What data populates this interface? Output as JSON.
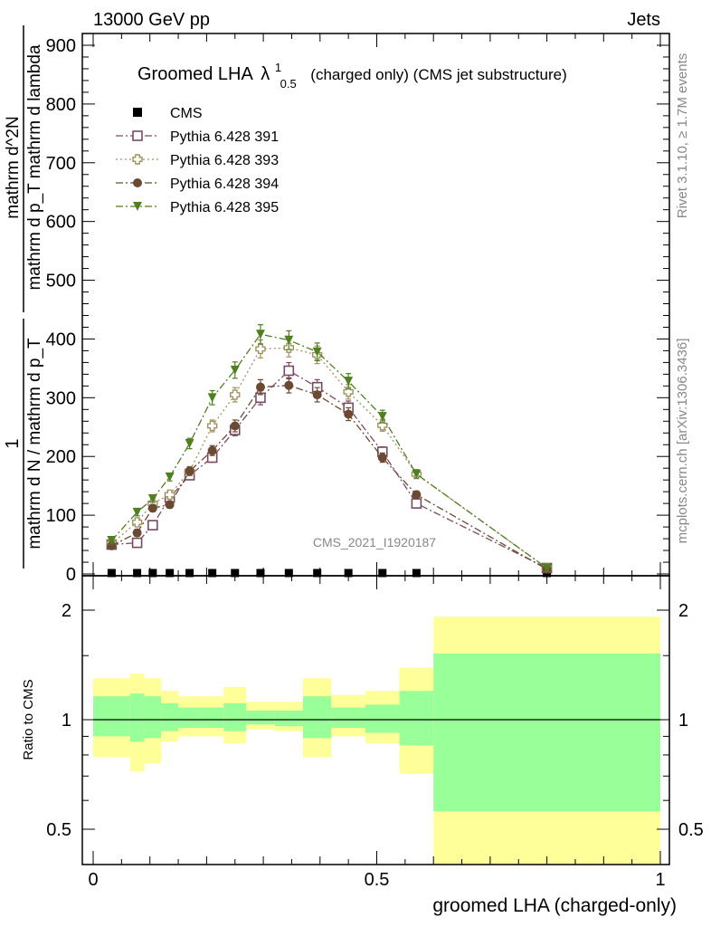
{
  "header": {
    "left": "13000 GeV pp",
    "right": "Jets"
  },
  "side_labels": {
    "rivet": "Rivet 3.1.10, ≥ 1.7M events",
    "mcplots": "mcplots.cern.ch [arXiv:1306.3436]"
  },
  "watermark": "CMS_2021_I1920187",
  "chart_data": [
    {
      "type": "line",
      "title": {
        "main": "Groomed LHA",
        "lambda": "λ",
        "sup": "1",
        "sub": "0.5",
        "suffix": "(charged only) (CMS jet substructure)"
      },
      "ylabel": {
        "frac_num": "1",
        "frac_den": "mathrm d N / mathrm d p_T",
        "rhs_num": "mathrm d^2N",
        "rhs_den": "mathrm d p_T mathrm d lambda"
      },
      "xlim": [
        0,
        1
      ],
      "ylim": [
        0,
        920
      ],
      "yticks": [
        0,
        100,
        200,
        300,
        400,
        500,
        600,
        700,
        800,
        900
      ],
      "legend_position": "top-left",
      "series": [
        {
          "name": "CMS",
          "color": "#000000",
          "marker": "square-filled",
          "x": [
            0.0325,
            0.0775,
            0.105,
            0.135,
            0.17,
            0.21,
            0.25,
            0.295,
            0.345,
            0.395,
            0.45,
            0.51,
            0.57,
            0.8
          ],
          "y": [
            0,
            0,
            0,
            0,
            0,
            0,
            0,
            0,
            0,
            0,
            0,
            0,
            0,
            0
          ]
        },
        {
          "name": "Pythia 6.428 391",
          "color": "#7a4a62",
          "marker": "square-open",
          "dash": "8,3,2,3",
          "x": [
            0.0325,
            0.0775,
            0.105,
            0.135,
            0.17,
            0.21,
            0.25,
            0.295,
            0.345,
            0.395,
            0.45,
            0.51,
            0.57,
            0.8
          ],
          "y": [
            50,
            53,
            83,
            130,
            168,
            198,
            245,
            300,
            346,
            318,
            283,
            208,
            120,
            10
          ]
        },
        {
          "name": "Pythia 6.428 393",
          "color": "#9f9460",
          "marker": "cross-open",
          "dash": "2,3",
          "x": [
            0.0325,
            0.0775,
            0.105,
            0.135,
            0.17,
            0.21,
            0.25,
            0.295,
            0.345,
            0.395,
            0.45,
            0.51,
            0.57,
            0.8
          ],
          "y": [
            52,
            88,
            120,
            135,
            175,
            252,
            305,
            383,
            385,
            373,
            310,
            253,
            170,
            10
          ]
        },
        {
          "name": "Pythia 6.428 394",
          "color": "#6b4a33",
          "marker": "circle-filled",
          "dash": "8,3,2,3",
          "x": [
            0.0325,
            0.0775,
            0.105,
            0.135,
            0.17,
            0.21,
            0.25,
            0.295,
            0.345,
            0.395,
            0.45,
            0.51,
            0.57,
            0.8
          ],
          "y": [
            48,
            70,
            112,
            118,
            175,
            210,
            252,
            318,
            321,
            305,
            272,
            198,
            135,
            8
          ]
        },
        {
          "name": "Pythia 6.428 395",
          "color": "#4f7f1f",
          "marker": "triangle-down-filled",
          "dash": "8,3,2,3",
          "x": [
            0.0325,
            0.0775,
            0.105,
            0.135,
            0.17,
            0.21,
            0.25,
            0.295,
            0.345,
            0.395,
            0.45,
            0.51,
            0.57,
            0.8
          ],
          "y": [
            57,
            105,
            128,
            165,
            222,
            300,
            347,
            408,
            398,
            378,
            328,
            268,
            170,
            10
          ]
        }
      ]
    },
    {
      "type": "area",
      "ylabel": "Ratio to CMS",
      "xlabel": "groomed LHA (charged-only)",
      "xlim": [
        0,
        1
      ],
      "ylim": [
        0.37,
        2.3
      ],
      "yticks": [
        0.5,
        1,
        2
      ],
      "reference_line": 1,
      "bin_edges": [
        0,
        0.065,
        0.09,
        0.12,
        0.15,
        0.19,
        0.23,
        0.27,
        0.32,
        0.37,
        0.42,
        0.48,
        0.54,
        0.6,
        1.0
      ],
      "bands": {
        "outer": {
          "color": "#ffff99",
          "upper": [
            1.3,
            1.34,
            1.3,
            1.2,
            1.16,
            1.16,
            1.23,
            1.12,
            1.12,
            1.3,
            1.17,
            1.2,
            1.39,
            1.92
          ],
          "lower": [
            0.79,
            0.72,
            0.76,
            0.87,
            0.9,
            0.9,
            0.86,
            0.94,
            0.93,
            0.79,
            0.9,
            0.86,
            0.71,
            0.37
          ]
        },
        "inner": {
          "color": "#99ff99",
          "upper": [
            1.16,
            1.18,
            1.16,
            1.11,
            1.08,
            1.08,
            1.11,
            1.06,
            1.06,
            1.16,
            1.08,
            1.1,
            1.2,
            1.52
          ],
          "lower": [
            0.9,
            0.87,
            0.89,
            0.93,
            0.95,
            0.95,
            0.93,
            0.97,
            0.96,
            0.89,
            0.95,
            0.92,
            0.85,
            0.56
          ]
        }
      }
    }
  ]
}
